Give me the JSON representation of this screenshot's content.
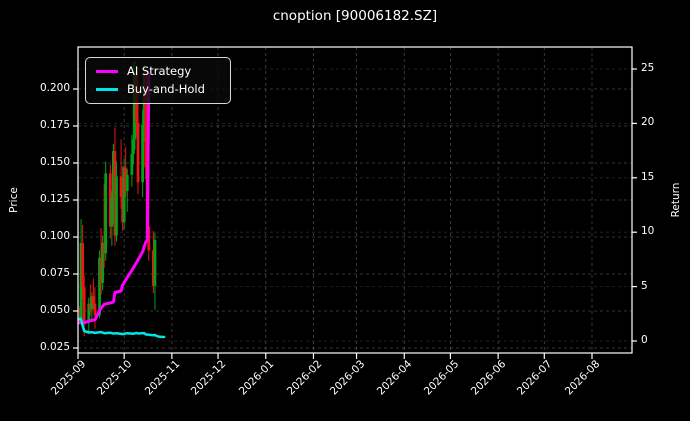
{
  "window": {
    "title": "cnoption [90006182.SZ]"
  },
  "axes": {
    "left_label": "Price",
    "right_label": "Return"
  },
  "legend": [
    {
      "name": "AI Strategy",
      "color": "#ff00ff"
    },
    {
      "name": "Buy-and-Hold",
      "color": "#00e5e5"
    }
  ],
  "colors": {
    "background": "#000000",
    "foreground": "#ffffff",
    "candle_up": "#00a31b",
    "candle_down": "#ee1515",
    "ai_strategy": "#ff00ff",
    "buy_and_hold": "#00e5e5",
    "grid": "#ffffff"
  },
  "chart_data": {
    "type": "candlestick",
    "title": "cnoption [90006182.SZ]",
    "ylabel_left": "Price",
    "ylabel_right": "Return",
    "grid": true,
    "legend_position": "upper-left",
    "x_ticks": [
      "2025-09",
      "2025-10",
      "2025-11",
      "2025-12",
      "2026-01",
      "2026-02",
      "2026-03",
      "2026-04",
      "2026-05",
      "2026-06",
      "2026-07",
      "2026-08"
    ],
    "price_axis": {
      "tick_values": [
        0.2,
        0.175,
        0.15,
        0.125,
        0.1,
        0.075,
        0.05,
        0.025
      ],
      "tick_labels": [
        "0.200",
        "0.175",
        "0.150",
        "0.125",
        "0.100",
        "0.075",
        "0.050",
        "0.025"
      ]
    },
    "return_axis": {
      "tick_values": [
        25,
        20,
        15,
        10,
        5,
        0
      ],
      "tick_labels": [
        "25",
        "20",
        "15",
        "10",
        "5",
        "0"
      ]
    },
    "candles_ohlc": [
      [
        "2025-09-01",
        0.041,
        0.047,
        0.038,
        0.044
      ],
      [
        "2025-09-02",
        0.044,
        0.053,
        0.041,
        0.043
      ],
      [
        "2025-09-03",
        0.043,
        0.112,
        0.042,
        0.096
      ],
      [
        "2025-09-04",
        0.096,
        0.108,
        0.058,
        0.066
      ],
      [
        "2025-09-05",
        0.066,
        0.074,
        0.033,
        0.042
      ],
      [
        "2025-09-08",
        0.042,
        0.059,
        0.036,
        0.055
      ],
      [
        "2025-09-09",
        0.055,
        0.068,
        0.047,
        0.051
      ],
      [
        "2025-09-10",
        0.051,
        0.063,
        0.043,
        0.06
      ],
      [
        "2025-09-11",
        0.06,
        0.072,
        0.051,
        0.055
      ],
      [
        "2025-09-12",
        0.055,
        0.066,
        0.038,
        0.047
      ],
      [
        "2025-09-15",
        0.047,
        0.091,
        0.045,
        0.086
      ],
      [
        "2025-09-16",
        0.086,
        0.106,
        0.061,
        0.069
      ],
      [
        "2025-09-17",
        0.069,
        0.101,
        0.064,
        0.096
      ],
      [
        "2025-09-18",
        0.096,
        0.136,
        0.079,
        0.089
      ],
      [
        "2025-09-19",
        0.089,
        0.151,
        0.084,
        0.143
      ],
      [
        "2025-09-22",
        0.143,
        0.149,
        0.099,
        0.107
      ],
      [
        "2025-09-23",
        0.107,
        0.131,
        0.094,
        0.126
      ],
      [
        "2025-09-24",
        0.126,
        0.163,
        0.109,
        0.158
      ],
      [
        "2025-09-25",
        0.158,
        0.174,
        0.094,
        0.101
      ],
      [
        "2025-09-26",
        0.101,
        0.151,
        0.097,
        0.141
      ],
      [
        "2025-09-29",
        0.141,
        0.166,
        0.119,
        0.127
      ],
      [
        "2025-09-30",
        0.127,
        0.148,
        0.104,
        0.11
      ],
      [
        "2025-10-01",
        0.11,
        0.153,
        0.105,
        0.147
      ],
      [
        "2025-10-02",
        0.147,
        0.161,
        0.127,
        0.131
      ],
      [
        "2025-10-03",
        0.131,
        0.146,
        0.117,
        0.142
      ],
      [
        "2025-10-06",
        0.142,
        0.169,
        0.134,
        0.156
      ],
      [
        "2025-10-07",
        0.156,
        0.218,
        0.149,
        0.166
      ],
      [
        "2025-10-08",
        0.166,
        0.219,
        0.159,
        0.211
      ],
      [
        "2025-10-09",
        0.211,
        0.216,
        0.169,
        0.177
      ],
      [
        "2025-10-10",
        0.177,
        0.206,
        0.129,
        0.137
      ],
      [
        "2025-10-13",
        0.137,
        0.186,
        0.127,
        0.176
      ],
      [
        "2025-10-14",
        0.176,
        0.216,
        0.164,
        0.209
      ],
      [
        "2025-10-15",
        0.209,
        0.213,
        0.139,
        0.147
      ],
      [
        "2025-10-16",
        0.147,
        0.156,
        0.099,
        0.107
      ],
      [
        "2025-10-17",
        0.107,
        0.144,
        0.084,
        0.091
      ],
      [
        "2025-10-20",
        0.091,
        0.104,
        0.062,
        0.067
      ],
      [
        "2025-10-21",
        0.067,
        0.103,
        0.051,
        0.098
      ]
    ],
    "series": [
      {
        "name": "AI Strategy",
        "color": "#ff00ff",
        "value_axis": "price_left",
        "points": [
          [
            "2025-09-01",
            0.042
          ],
          [
            "2025-09-05",
            0.042
          ],
          [
            "2025-09-09",
            0.0435
          ],
          [
            "2025-09-12",
            0.044
          ],
          [
            "2025-09-15",
            0.05
          ],
          [
            "2025-09-16",
            0.052
          ],
          [
            "2025-09-18",
            0.0545
          ],
          [
            "2025-09-22",
            0.0555
          ],
          [
            "2025-09-24",
            0.056
          ],
          [
            "2025-09-25",
            0.0625
          ],
          [
            "2025-09-29",
            0.0635
          ],
          [
            "2025-09-30",
            0.0675
          ],
          [
            "2025-10-02",
            0.071
          ],
          [
            "2025-10-06",
            0.0775
          ],
          [
            "2025-10-08",
            0.081
          ],
          [
            "2025-10-10",
            0.0845
          ],
          [
            "2025-10-13",
            0.09
          ],
          [
            "2025-10-15",
            0.0965
          ],
          [
            "2025-10-16",
            0.098
          ],
          [
            "2025-10-17",
            0.2105
          ]
        ]
      },
      {
        "name": "Buy-and-Hold",
        "color": "#00e5e5",
        "value_axis": "price_left",
        "points": [
          [
            "2025-09-01",
            0.0445
          ],
          [
            "2025-09-03",
            0.0448
          ],
          [
            "2025-09-04",
            0.04
          ],
          [
            "2025-09-05",
            0.0365
          ],
          [
            "2025-09-08",
            0.0355
          ],
          [
            "2025-09-10",
            0.0357
          ],
          [
            "2025-09-12",
            0.0352
          ],
          [
            "2025-09-16",
            0.0358
          ],
          [
            "2025-09-18",
            0.035
          ],
          [
            "2025-09-22",
            0.0353
          ],
          [
            "2025-09-24",
            0.0348
          ],
          [
            "2025-09-26",
            0.0349
          ],
          [
            "2025-09-30",
            0.0344
          ],
          [
            "2025-10-03",
            0.035
          ],
          [
            "2025-10-07",
            0.0346
          ],
          [
            "2025-10-09",
            0.0352
          ],
          [
            "2025-10-10",
            0.0348
          ],
          [
            "2025-10-14",
            0.0351
          ],
          [
            "2025-10-15",
            0.0342
          ],
          [
            "2025-10-17",
            0.034
          ],
          [
            "2025-10-20",
            0.0336
          ],
          [
            "2025-10-21",
            0.0338
          ],
          [
            "2025-10-22",
            0.0332
          ],
          [
            "2025-10-24",
            0.0326
          ],
          [
            "2025-10-27",
            0.0324
          ]
        ]
      }
    ]
  }
}
